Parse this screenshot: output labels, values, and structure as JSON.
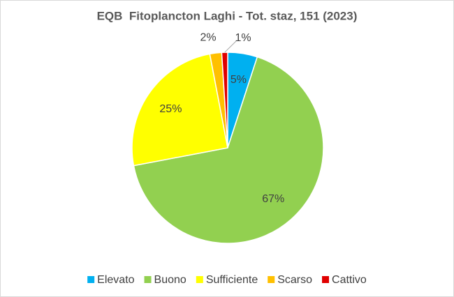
{
  "chart_data": {
    "type": "pie",
    "title": "EQB  Fitoplancton Laghi - Tot. staz, 151 (2023)",
    "categories": [
      "Elevato",
      "Buono",
      "Sufficiente",
      "Scarso",
      "Cattivo"
    ],
    "values": [
      5,
      67,
      25,
      2,
      1
    ],
    "value_labels": [
      "5%",
      "67%",
      "25%",
      "2%",
      "1%"
    ],
    "colors": [
      "#00b0f0",
      "#92d050",
      "#ffff00",
      "#ffc000",
      "#e00000"
    ],
    "legend": "bottom"
  }
}
